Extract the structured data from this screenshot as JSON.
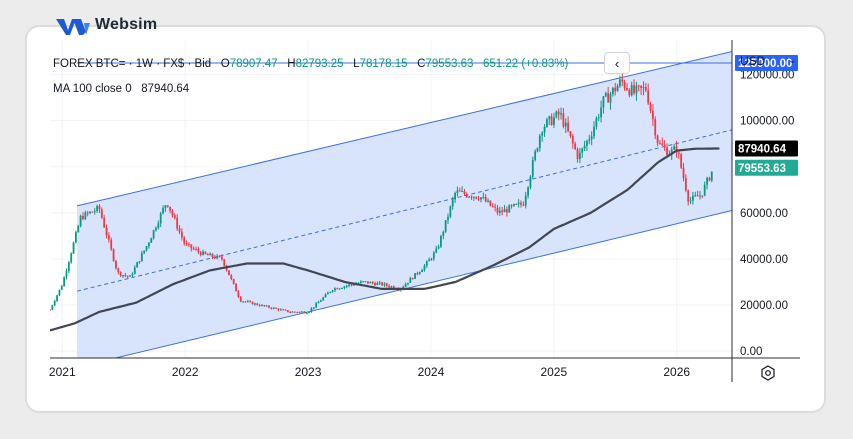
{
  "brand": {
    "name": "Websim"
  },
  "legend": {
    "symbol": "FOREX BTC= · 1W · FX$ · Bid",
    "open_label": "O",
    "open": "78907.47",
    "high_label": "H",
    "high": "82793.25",
    "low_label": "L",
    "low": "78178.15",
    "close_label": "C",
    "close": "79553.63",
    "change": "651.22 (+0.83%)",
    "ma_label": "MA 100 close 0",
    "ma_value": "87940.64"
  },
  "price_axis": {
    "currency": "USD"
  },
  "colors": {
    "up": "#089981",
    "down": "#f23645",
    "ma": "#434651",
    "channel": "#3b6fe0",
    "channel_fill": "#d6e2fc",
    "label_blue": "#2962ff"
  },
  "chart_data": {
    "type": "candlestick",
    "x_ticks": [
      "2021",
      "2022",
      "2023",
      "2024",
      "2025",
      "2026"
    ],
    "y_ticks": [
      0,
      20000,
      40000,
      60000,
      80000,
      100000,
      120000
    ],
    "y_tick_labels": [
      "0.00",
      "20000.00",
      "40000.00",
      "60000.00",
      "80000.00",
      "100000.00",
      "120000.00"
    ],
    "xlim": [
      2020.9,
      2026.45
    ],
    "ylim": [
      -3000,
      135000
    ],
    "price_labels": {
      "horizontal_level": "125000.00",
      "ma": "87940.64",
      "last": "79553.63"
    },
    "horizontal_line": {
      "y": 125000,
      "x_start": 2021.12
    },
    "channel": {
      "x_start": 2021.12,
      "x_end": 2026.45,
      "upper": [
        63000,
        130000
      ],
      "mid": [
        26000,
        96000
      ],
      "lower": [
        -7000,
        61000
      ]
    },
    "price_keypoints": [
      [
        2020.9,
        18000
      ],
      [
        2021.0,
        29000
      ],
      [
        2021.15,
        58000
      ],
      [
        2021.3,
        62000
      ],
      [
        2021.45,
        34000
      ],
      [
        2021.55,
        32000
      ],
      [
        2021.7,
        47000
      ],
      [
        2021.85,
        65000
      ],
      [
        2022.0,
        46000
      ],
      [
        2022.15,
        42000
      ],
      [
        2022.3,
        40000
      ],
      [
        2022.45,
        22000
      ],
      [
        2022.6,
        20000
      ],
      [
        2022.85,
        17000
      ],
      [
        2023.0,
        17000
      ],
      [
        2023.2,
        27000
      ],
      [
        2023.45,
        30000
      ],
      [
        2023.6,
        29000
      ],
      [
        2023.75,
        27000
      ],
      [
        2023.95,
        37000
      ],
      [
        2024.05,
        44000
      ],
      [
        2024.2,
        69000
      ],
      [
        2024.4,
        67000
      ],
      [
        2024.55,
        60000
      ],
      [
        2024.75,
        64000
      ],
      [
        2024.9,
        97000
      ],
      [
        2025.05,
        103000
      ],
      [
        2025.2,
        84000
      ],
      [
        2025.3,
        94000
      ],
      [
        2025.4,
        108000
      ],
      [
        2025.55,
        117000
      ],
      [
        2025.65,
        112000
      ],
      [
        2025.75,
        114000
      ],
      [
        2025.85,
        90000
      ],
      [
        2025.95,
        86000
      ],
      [
        2026.0,
        88000
      ],
      [
        2026.07,
        72000
      ],
      [
        2026.1,
        65000
      ],
      [
        2026.2,
        68000
      ],
      [
        2026.3,
        79553
      ]
    ],
    "ma100_keypoints": [
      [
        2020.9,
        9000
      ],
      [
        2021.1,
        12000
      ],
      [
        2021.3,
        17000
      ],
      [
        2021.6,
        21000
      ],
      [
        2021.9,
        29000
      ],
      [
        2022.2,
        35000
      ],
      [
        2022.5,
        38000
      ],
      [
        2022.8,
        38000
      ],
      [
        2023.0,
        35000
      ],
      [
        2023.3,
        30000
      ],
      [
        2023.6,
        27000
      ],
      [
        2023.95,
        27000
      ],
      [
        2024.2,
        30000
      ],
      [
        2024.5,
        37000
      ],
      [
        2024.8,
        45000
      ],
      [
        2025.0,
        53000
      ],
      [
        2025.3,
        60000
      ],
      [
        2025.6,
        70000
      ],
      [
        2025.85,
        82000
      ],
      [
        2026.0,
        87000
      ],
      [
        2026.15,
        87800
      ],
      [
        2026.35,
        87940
      ]
    ]
  }
}
